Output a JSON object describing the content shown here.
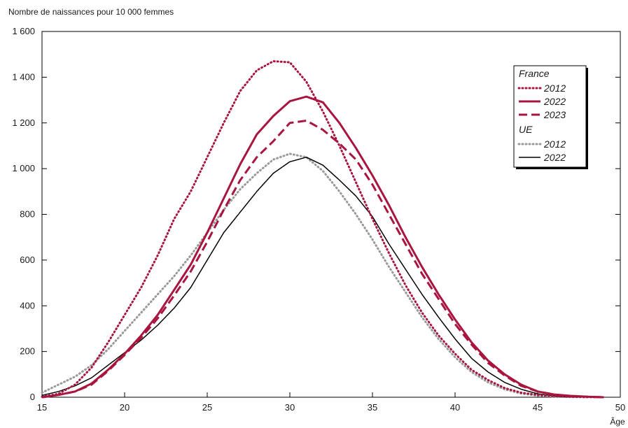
{
  "chart_data": {
    "type": "line",
    "ylabel": "Nombre de naissances pour 10 000 femmes",
    "xlabel": "Âge",
    "xlim": [
      15,
      50
    ],
    "ylim": [
      0,
      1600
    ],
    "x_ticks": [
      15,
      20,
      25,
      30,
      35,
      40,
      45,
      50
    ],
    "y_ticks": [
      0,
      200,
      400,
      600,
      800,
      1000,
      1200,
      1400,
      1600
    ],
    "y_tick_labels": [
      "0",
      "200",
      "400",
      "600",
      "800",
      "1 000",
      "1 200",
      "1 400",
      "1 600"
    ],
    "grid": false,
    "legend_position": "top-right",
    "legend": {
      "group1": "France",
      "group2": "UE"
    },
    "series": [
      {
        "name": "2012",
        "group": "France",
        "style": "dotted",
        "color": "#a8153f",
        "x": [
          15,
          16,
          17,
          18,
          19,
          20,
          21,
          22,
          23,
          24,
          25,
          26,
          27,
          28,
          29,
          30,
          31,
          32,
          33,
          34,
          35,
          36,
          37,
          38,
          39,
          40,
          41,
          42,
          43,
          44,
          45,
          46,
          47,
          48,
          49
        ],
        "y": [
          2,
          15,
          55,
          130,
          240,
          360,
          480,
          620,
          780,
          900,
          1050,
          1200,
          1340,
          1430,
          1470,
          1465,
          1380,
          1250,
          1100,
          940,
          780,
          630,
          490,
          370,
          270,
          190,
          120,
          75,
          40,
          20,
          10,
          5,
          2,
          1,
          0
        ]
      },
      {
        "name": "2022",
        "group": "France",
        "style": "solid-thick",
        "color": "#a8153f",
        "x": [
          15,
          16,
          17,
          18,
          19,
          20,
          21,
          22,
          23,
          24,
          25,
          26,
          27,
          28,
          29,
          30,
          31,
          32,
          33,
          34,
          35,
          36,
          37,
          38,
          39,
          40,
          41,
          42,
          43,
          44,
          45,
          46,
          47,
          48,
          49
        ],
        "y": [
          0,
          10,
          25,
          60,
          120,
          190,
          270,
          360,
          470,
          580,
          720,
          870,
          1020,
          1150,
          1230,
          1295,
          1315,
          1290,
          1200,
          1090,
          970,
          840,
          700,
          570,
          450,
          340,
          240,
          160,
          100,
          55,
          25,
          12,
          6,
          2,
          0
        ]
      },
      {
        "name": "2023",
        "group": "France",
        "style": "dashed",
        "color": "#a8153f",
        "x": [
          15,
          16,
          17,
          18,
          19,
          20,
          21,
          22,
          23,
          24,
          25,
          26,
          27,
          28,
          29,
          30,
          31,
          32,
          33,
          34,
          35,
          36,
          37,
          38,
          39,
          40,
          41,
          42,
          43,
          44,
          45,
          46,
          47,
          48,
          49
        ],
        "y": [
          0,
          10,
          25,
          55,
          115,
          185,
          260,
          345,
          445,
          550,
          680,
          820,
          950,
          1050,
          1120,
          1200,
          1210,
          1170,
          1110,
          1040,
          930,
          800,
          670,
          540,
          430,
          320,
          230,
          150,
          95,
          50,
          25,
          12,
          5,
          2,
          0
        ]
      },
      {
        "name": "2012",
        "group": "UE",
        "style": "dotted",
        "color": "#999999",
        "x": [
          15,
          16,
          17,
          18,
          19,
          20,
          21,
          22,
          23,
          24,
          25,
          26,
          27,
          28,
          29,
          30,
          31,
          32,
          33,
          34,
          35,
          36,
          37,
          38,
          39,
          40,
          41,
          42,
          43,
          44,
          45,
          46,
          47,
          48,
          49
        ],
        "y": [
          20,
          55,
          90,
          140,
          210,
          290,
          370,
          450,
          530,
          620,
          720,
          820,
          910,
          980,
          1040,
          1065,
          1050,
          990,
          900,
          800,
          690,
          570,
          460,
          350,
          255,
          175,
          110,
          65,
          35,
          16,
          7,
          3,
          1,
          0,
          0
        ]
      },
      {
        "name": "2022",
        "group": "UE",
        "style": "solid-thin",
        "color": "#000000",
        "x": [
          15,
          16,
          17,
          18,
          19,
          20,
          21,
          22,
          23,
          24,
          25,
          26,
          27,
          28,
          29,
          30,
          31,
          32,
          33,
          34,
          35,
          36,
          37,
          38,
          39,
          40,
          41,
          42,
          43,
          44,
          45,
          46,
          47,
          48,
          49
        ],
        "y": [
          8,
          25,
          50,
          85,
          140,
          195,
          250,
          315,
          390,
          480,
          600,
          720,
          810,
          900,
          980,
          1030,
          1050,
          1015,
          950,
          880,
          790,
          670,
          560,
          450,
          350,
          255,
          170,
          110,
          65,
          35,
          15,
          6,
          2,
          1,
          0
        ]
      }
    ]
  }
}
